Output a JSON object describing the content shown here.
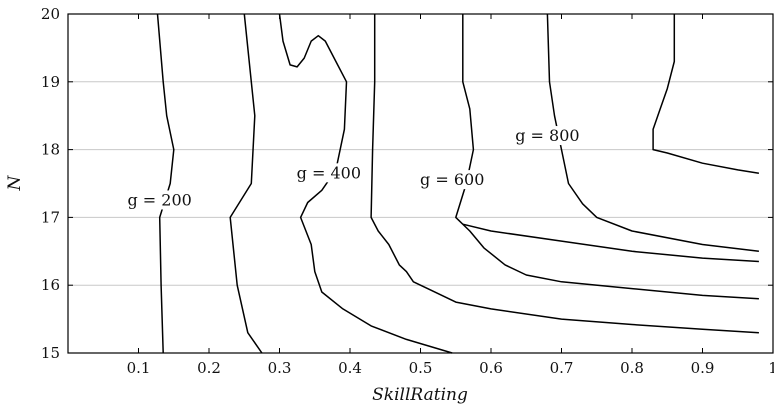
{
  "chart_data": {
    "type": "line",
    "xlabel": "SkillRating",
    "ylabel": "N",
    "xlim": [
      0,
      1
    ],
    "ylim": [
      15,
      20
    ],
    "x_ticks": [
      "0.1",
      "0.2",
      "0.3",
      "0.4",
      "0.5",
      "0.6",
      "0.7",
      "0.8",
      "0.9",
      "1"
    ],
    "y_ticks": [
      "15",
      "16",
      "17",
      "18",
      "19",
      "20"
    ],
    "grid": "horizontal",
    "series": [
      {
        "name": "g = 200",
        "label_x": 0.13,
        "label_y": 17.25,
        "points": [
          [
            0.127,
            20
          ],
          [
            0.135,
            19
          ],
          [
            0.14,
            18.5
          ],
          [
            0.15,
            18
          ],
          [
            0.145,
            17.5
          ],
          [
            0.13,
            17
          ],
          [
            0.132,
            16
          ],
          [
            0.135,
            15
          ]
        ]
      },
      {
        "name": "",
        "points": [
          [
            0.25,
            20
          ],
          [
            0.26,
            19
          ],
          [
            0.265,
            18.5
          ],
          [
            0.26,
            17.5
          ],
          [
            0.23,
            17
          ],
          [
            0.24,
            16
          ],
          [
            0.255,
            15.3
          ],
          [
            0.275,
            15
          ]
        ]
      },
      {
        "name": "g = 400",
        "label_x": 0.37,
        "label_y": 17.65,
        "points": [
          [
            0.3,
            20
          ],
          [
            0.305,
            19.6
          ],
          [
            0.315,
            19.25
          ],
          [
            0.325,
            19.22
          ],
          [
            0.335,
            19.35
          ],
          [
            0.345,
            19.6
          ],
          [
            0.355,
            19.68
          ],
          [
            0.365,
            19.6
          ],
          [
            0.38,
            19.3
          ],
          [
            0.395,
            19
          ],
          [
            0.392,
            18.3
          ],
          [
            0.38,
            17.7
          ],
          [
            0.36,
            17.4
          ],
          [
            0.34,
            17.22
          ],
          [
            0.33,
            17
          ],
          [
            0.345,
            16.6
          ],
          [
            0.35,
            16.2
          ],
          [
            0.36,
            15.9
          ],
          [
            0.39,
            15.65
          ],
          [
            0.43,
            15.4
          ],
          [
            0.48,
            15.2
          ],
          [
            0.545,
            15
          ]
        ]
      },
      {
        "name": "",
        "points": [
          [
            0.435,
            20
          ],
          [
            0.435,
            19
          ],
          [
            0.432,
            18
          ],
          [
            0.43,
            17
          ],
          [
            0.44,
            16.8
          ],
          [
            0.455,
            16.6
          ],
          [
            0.47,
            16.3
          ],
          [
            0.48,
            16.2
          ],
          [
            0.49,
            16.05
          ],
          [
            0.51,
            15.95
          ],
          [
            0.55,
            15.75
          ],
          [
            0.6,
            15.65
          ],
          [
            0.7,
            15.5
          ],
          [
            0.8,
            15.42
          ],
          [
            0.9,
            15.35
          ],
          [
            0.98,
            15.3
          ]
        ]
      },
      {
        "name": "g = 600",
        "label_x": 0.545,
        "label_y": 17.55,
        "points": [
          [
            0.56,
            20
          ],
          [
            0.56,
            19
          ],
          [
            0.57,
            18.6
          ],
          [
            0.575,
            18
          ],
          [
            0.565,
            17.5
          ],
          [
            0.55,
            17
          ],
          [
            0.57,
            16.8
          ],
          [
            0.59,
            16.55
          ],
          [
            0.62,
            16.3
          ],
          [
            0.65,
            16.15
          ],
          [
            0.7,
            16.05
          ],
          [
            0.8,
            15.95
          ],
          [
            0.9,
            15.85
          ],
          [
            0.98,
            15.8
          ]
        ]
      },
      {
        "name": "g = 800",
        "label_x": 0.68,
        "label_y": 18.2,
        "points": [
          [
            0.68,
            20
          ],
          [
            0.683,
            19
          ],
          [
            0.69,
            18.5
          ],
          [
            0.7,
            18
          ],
          [
            0.71,
            17.5
          ],
          [
            0.73,
            17.2
          ],
          [
            0.75,
            17
          ],
          [
            0.8,
            16.8
          ],
          [
            0.9,
            16.6
          ],
          [
            0.98,
            16.5
          ]
        ]
      },
      {
        "name": "",
        "points": [
          [
            0.86,
            20
          ],
          [
            0.86,
            19.3
          ],
          [
            0.85,
            18.9
          ],
          [
            0.84,
            18.6
          ],
          [
            0.83,
            18.3
          ],
          [
            0.83,
            18
          ],
          [
            0.85,
            17.95
          ],
          [
            0.9,
            17.8
          ],
          [
            0.95,
            17.7
          ],
          [
            0.98,
            17.65
          ]
        ]
      },
      {
        "name": "",
        "points": [
          [
            0.56,
            16.9
          ],
          [
            0.6,
            16.8
          ],
          [
            0.7,
            16.65
          ],
          [
            0.8,
            16.5
          ],
          [
            0.9,
            16.4
          ],
          [
            0.98,
            16.35
          ]
        ]
      }
    ]
  }
}
